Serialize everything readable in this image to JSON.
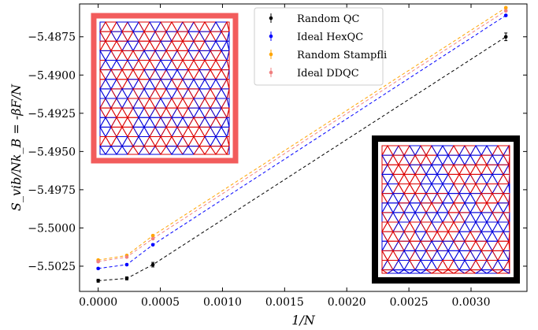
{
  "chart_data": {
    "type": "line",
    "xlabel": "1/N",
    "ylabel": "S_vib/Nk_B = -βF/N",
    "xlim": [
      -0.00015,
      0.00345
    ],
    "ylim": [
      -5.50415,
      -5.48535
    ],
    "x_ticks": [
      0.0,
      0.0005,
      0.001,
      0.0015,
      0.002,
      0.0025,
      0.003
    ],
    "x_tick_labels": [
      "0.0000",
      "0.0005",
      "0.0010",
      "0.0015",
      "0.0020",
      "0.0025",
      "0.0030"
    ],
    "y_ticks": [
      -5.4875,
      -5.49,
      -5.4925,
      -5.495,
      -5.4975,
      -5.5,
      -5.5025
    ],
    "y_tick_labels": [
      "−5.4875",
      "−5.4900",
      "−5.4925",
      "−5.4950",
      "−5.4975",
      "−5.5000",
      "−5.5025"
    ],
    "legend_position": "top-center",
    "series": [
      {
        "name": "Random QC",
        "color": "#000000",
        "x": [
          0.0,
          0.00023,
          0.00044,
          0.00328
        ],
        "y": [
          -5.50345,
          -5.5033,
          -5.5024,
          -5.4875
        ],
        "err": [
          0.0001,
          0.0001,
          0.00015,
          0.00025
        ]
      },
      {
        "name": "Ideal HexQC",
        "color": "#0000ff",
        "x": [
          0.0,
          0.00023,
          0.00044,
          0.00328
        ],
        "y": [
          -5.50265,
          -5.5024,
          -5.5011,
          -5.4861
        ],
        "err": [
          5e-05,
          5e-05,
          5e-05,
          5e-05
        ]
      },
      {
        "name": "Random Stampfli",
        "color": "#ffa500",
        "x": [
          0.0,
          0.00023,
          0.00044,
          0.00328
        ],
        "y": [
          -5.5021,
          -5.5018,
          -5.5005,
          -5.4856
        ],
        "err": [
          5e-05,
          5e-05,
          5e-05,
          5e-05
        ]
      },
      {
        "name": "Ideal DDQC",
        "color": "#f08080",
        "x": [
          0.0,
          0.00023,
          0.00044,
          0.00328
        ],
        "y": [
          -5.5022,
          -5.5019,
          -5.5007,
          -5.4858
        ],
        "err": [
          5e-05,
          5e-05,
          5e-05,
          5e-05
        ]
      }
    ],
    "insets": [
      {
        "name": "ddqc-tiling-inset",
        "frame_color": "#f25c5c"
      },
      {
        "name": "random-qc-tiling-inset",
        "frame_color": "#000000"
      }
    ]
  }
}
